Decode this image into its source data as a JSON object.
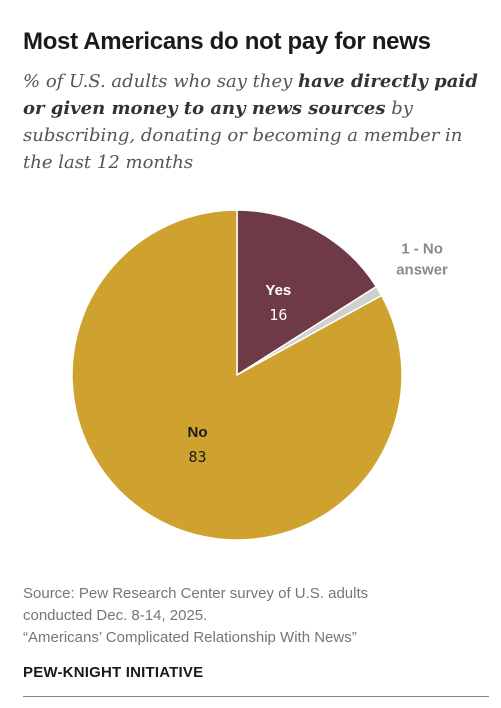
{
  "title": "Most Americans do not pay for news",
  "subtitle": {
    "part1": "% of U.S. adults who say they ",
    "emphasis": "have directly paid or given money to any news sources",
    "part2": " by subscribing, donating or becoming a member in the last 12 months"
  },
  "chart_data": {
    "type": "pie",
    "slices": [
      {
        "label": "Yes",
        "value": 16,
        "color": "#6e3a46",
        "label_color": "#ffffff"
      },
      {
        "label": "1 - No answer",
        "value": 1,
        "color": "#d0d0d0",
        "label_color": "#8a8a8a"
      },
      {
        "label": "No",
        "value": 83,
        "color": "#cfa12e",
        "label_color": "#1a1a1a"
      }
    ]
  },
  "source": {
    "line1": "Source: Pew Research Center survey of U.S. adults",
    "line2": "conducted Dec. 8-14, 2025.",
    "line3": "“Americans’ Complicated Relationship With News”"
  },
  "organization": "PEW-KNIGHT INITIATIVE"
}
